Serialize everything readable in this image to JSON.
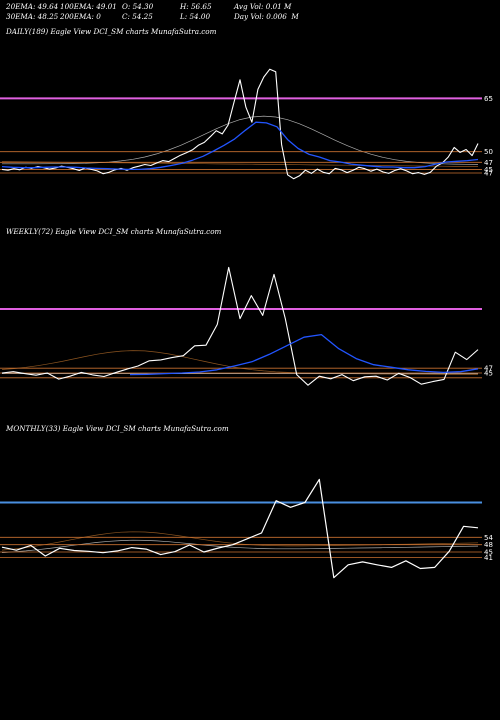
{
  "header": {
    "row1": [
      "20EMA: 49.64",
      "100EMA: 49.01",
      "O: 54.30",
      "H: 56.65",
      "Avg Vol: 0.01 M"
    ],
    "row2": [
      "30EMA: 48.25",
      "200EMA: 0",
      "C: 54.25",
      "L: 54.00",
      "Day Vol: 0.006  M"
    ]
  },
  "colors": {
    "background": "#000000",
    "price": "#ffffff",
    "ema_blue": "#2255ff",
    "resistance_magenta": "#e060e0",
    "monthly_level": "#4a8fe0",
    "levels": "#c87030"
  },
  "chart_data": [
    {
      "type": "line",
      "title": "DAILY(189) Eagle  View  DCI_SM charts MunafaSutra.com",
      "right_labels": [
        "65",
        "50",
        "47",
        "45",
        "47"
      ],
      "series": [
        {
          "values": [
            45.0,
            44.8,
            45.2,
            44.9,
            45.6,
            45.3,
            45.8,
            45.5,
            45.1,
            45.4,
            45.9,
            45.6,
            45.2,
            44.7,
            45.4,
            45.0,
            44.6,
            43.8,
            44.2,
            44.9,
            45.3,
            44.8,
            45.5,
            45.9,
            46.4,
            46.1,
            46.8,
            47.5,
            47.2,
            48.1,
            49.0,
            49.7,
            50.5,
            51.8,
            52.6,
            54.2,
            55.9,
            55.0,
            57.5,
            64.0,
            70.2,
            62.5,
            58.3,
            67.5,
            71.0,
            73.2,
            72.5,
            52.0,
            43.5,
            42.4,
            43.2,
            44.8,
            43.9,
            45.1,
            44.2,
            43.8,
            45.3,
            44.9,
            44.1,
            44.8,
            45.6,
            45.2,
            44.5,
            45.1,
            44.3,
            43.9,
            44.7,
            45.2,
            44.6,
            43.8,
            44.1,
            43.6,
            44.2,
            45.9,
            46.8,
            48.5,
            51.2,
            49.8,
            50.6,
            48.9,
            52.3
          ]
        },
        {
          "values": [
            45.8,
            45.6,
            45.5,
            45.5,
            45.6,
            45.7,
            45.7,
            45.6,
            45.4,
            45.3,
            45.2,
            45.1,
            45.0,
            45.0,
            45.2,
            45.6,
            46.1,
            46.7,
            47.6,
            48.7,
            50.2,
            51.8,
            53.6,
            56.0,
            58.3,
            58.1,
            57.0,
            53.4,
            50.9,
            49.3,
            48.5,
            47.5,
            47.1,
            46.5,
            46.2,
            45.9,
            45.7,
            45.7,
            45.5,
            45.5,
            45.8,
            46.5,
            47.1,
            47.3,
            47.5,
            47.8
          ]
        }
      ]
    },
    {
      "type": "line",
      "title": "WEEKLY(72) Eagle  View  DCI_SM charts MunafaSutra.com",
      "right_labels": [
        "47",
        "45"
      ],
      "series": [
        {
          "values": [
            45.0,
            45.4,
            44.8,
            44.3,
            45.0,
            43.1,
            44.0,
            45.2,
            44.4,
            43.9,
            45.1,
            46.2,
            47.2,
            48.8,
            49.1,
            49.8,
            50.4,
            53.5,
            53.7,
            60.2,
            78.0,
            62.0,
            69.2,
            63.0,
            75.8,
            62.0,
            44.5,
            41.2,
            44.0,
            43.2,
            44.5,
            42.6,
            43.8,
            44.0,
            42.8,
            44.9,
            43.6,
            41.5,
            42.3,
            43.0,
            51.5,
            49.2,
            52.3
          ]
        },
        {
          "values": [
            44.5,
            44.6,
            44.8,
            45.0,
            45.3,
            46.0,
            47.2,
            48.5,
            50.8,
            53.5,
            56.2,
            57.0,
            52.6,
            49.5,
            47.6,
            46.8,
            46.0,
            45.5,
            45.2,
            45.4,
            46.3
          ]
        }
      ]
    },
    {
      "type": "line",
      "title": "MONTHLY(33) Eagle  View  DCI_SM charts MunafaSutra.com",
      "right_labels": [
        "54",
        "48",
        "45",
        "41"
      ],
      "series": [
        {
          "values": [
            46.3,
            45.5,
            46.8,
            43.9,
            46.0,
            45.4,
            45.2,
            44.8,
            45.3,
            46.2,
            45.8,
            44.3,
            45.1,
            46.9,
            45.0,
            46.1,
            47.0,
            48.6,
            50.2,
            59.0,
            57.2,
            58.5,
            64.8,
            38.0,
            41.5,
            42.3,
            41.5,
            40.8,
            42.6,
            40.5,
            40.8,
            45.2,
            52.0,
            51.6
          ]
        }
      ]
    }
  ]
}
